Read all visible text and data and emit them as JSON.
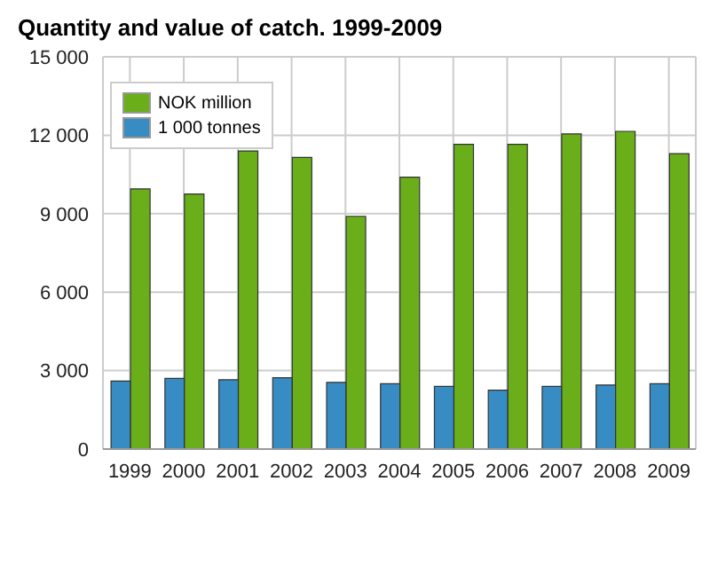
{
  "chart_data": {
    "type": "bar",
    "title": "Quantity and value of catch. 1999-2009",
    "categories": [
      "1999",
      "2000",
      "2001",
      "2002",
      "2003",
      "2004",
      "2005",
      "2006",
      "2007",
      "2008",
      "2009"
    ],
    "series": [
      {
        "name": "1 000 tonnes",
        "color": "#378cc3",
        "values": [
          2600,
          2700,
          2650,
          2730,
          2550,
          2500,
          2400,
          2250,
          2400,
          2450,
          2500
        ]
      },
      {
        "name": "NOK million",
        "color": "#6aaf1a",
        "values": [
          9950,
          9750,
          11400,
          11150,
          8900,
          10400,
          11650,
          11650,
          12050,
          12150,
          11300
        ]
      }
    ],
    "ylim": [
      0,
      15000
    ],
    "yticks": [
      0,
      {
        "value": 3000,
        "label": "3 000"
      },
      {
        "value": 6000,
        "label": "6 000"
      },
      {
        "value": 9000,
        "label": "9 000"
      },
      {
        "value": 12000,
        "label": "12 000"
      },
      {
        "value": 15000,
        "label": "15 000"
      }
    ],
    "grid": true,
    "legend": "top left"
  }
}
